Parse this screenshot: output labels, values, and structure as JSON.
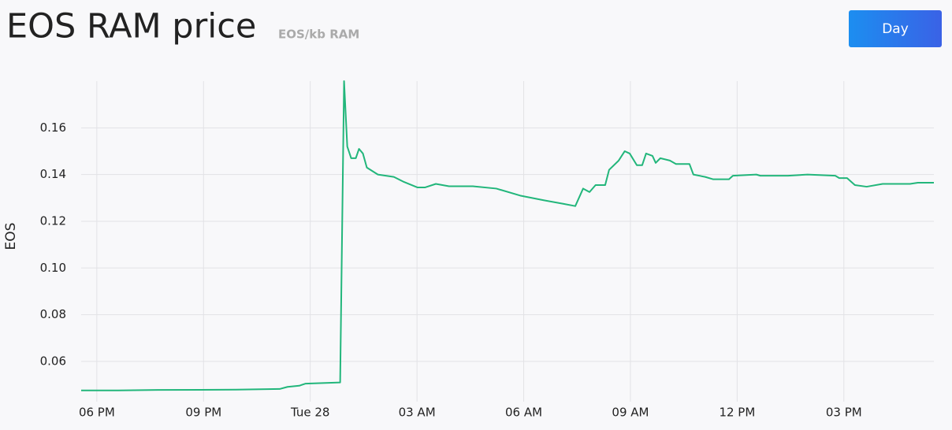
{
  "range_button": "Day",
  "chart_data": {
    "type": "line",
    "title": "EOS RAM price",
    "subtitle": "EOS/kb RAM",
    "y_label": "EOS",
    "color": "#22b67b",
    "grid": true,
    "x": [
      17.56,
      18.6,
      19.71,
      21.92,
      23.14,
      23.36,
      23.69,
      23.87,
      24.84,
      24.95,
      25.04,
      25.15,
      25.28,
      25.37,
      25.48,
      25.59,
      25.9,
      26.35,
      26.61,
      27.01,
      27.23,
      27.53,
      27.9,
      28.57,
      29.23,
      29.9,
      30.56,
      31.11,
      31.45,
      31.67,
      31.85,
      32.02,
      32.29,
      32.4,
      32.67,
      32.84,
      32.98,
      33.18,
      33.33,
      33.44,
      33.62,
      33.71,
      33.84,
      34.11,
      34.28,
      34.66,
      34.77,
      35.1,
      35.32,
      35.77,
      35.88,
      36.54,
      36.65,
      37.43,
      37.98,
      38.76,
      38.87,
      39.09,
      39.31,
      39.64,
      40.09,
      40.86,
      41.08,
      41.53
    ],
    "values": [
      0.0476,
      0.0476,
      0.0478,
      0.0479,
      0.0482,
      0.0491,
      0.0496,
      0.0505,
      0.051,
      0.18,
      0.152,
      0.147,
      0.147,
      0.151,
      0.149,
      0.143,
      0.14,
      0.139,
      0.137,
      0.1345,
      0.1345,
      0.136,
      0.135,
      0.135,
      0.134,
      0.131,
      0.129,
      0.1275,
      0.1265,
      0.134,
      0.1325,
      0.1355,
      0.1355,
      0.142,
      0.146,
      0.15,
      0.149,
      0.144,
      0.144,
      0.149,
      0.148,
      0.145,
      0.147,
      0.146,
      0.1445,
      0.1445,
      0.14,
      0.139,
      0.138,
      0.138,
      0.1395,
      0.14,
      0.1395,
      0.1395,
      0.14,
      0.1395,
      0.1385,
      0.1385,
      0.1355,
      0.1348,
      0.136,
      0.136,
      0.1365,
      0.1365
    ],
    "xlim": [
      17.56,
      41.53
    ],
    "xticks": [
      {
        "value": 18,
        "label": "06 PM"
      },
      {
        "value": 21,
        "label": "09 PM"
      },
      {
        "value": 24,
        "label": "Tue 28"
      },
      {
        "value": 27,
        "label": "03 AM"
      },
      {
        "value": 30,
        "label": "06 AM"
      },
      {
        "value": 33,
        "label": "09 AM"
      },
      {
        "value": 36,
        "label": "12 PM"
      },
      {
        "value": 39,
        "label": "03 PM"
      }
    ],
    "ylim": [
      0.0475,
      0.18
    ],
    "yticks": [
      0.06,
      0.08,
      {
        "value": 0.1,
        "label": "0.10"
      },
      0.12,
      0.14,
      0.16
    ]
  }
}
